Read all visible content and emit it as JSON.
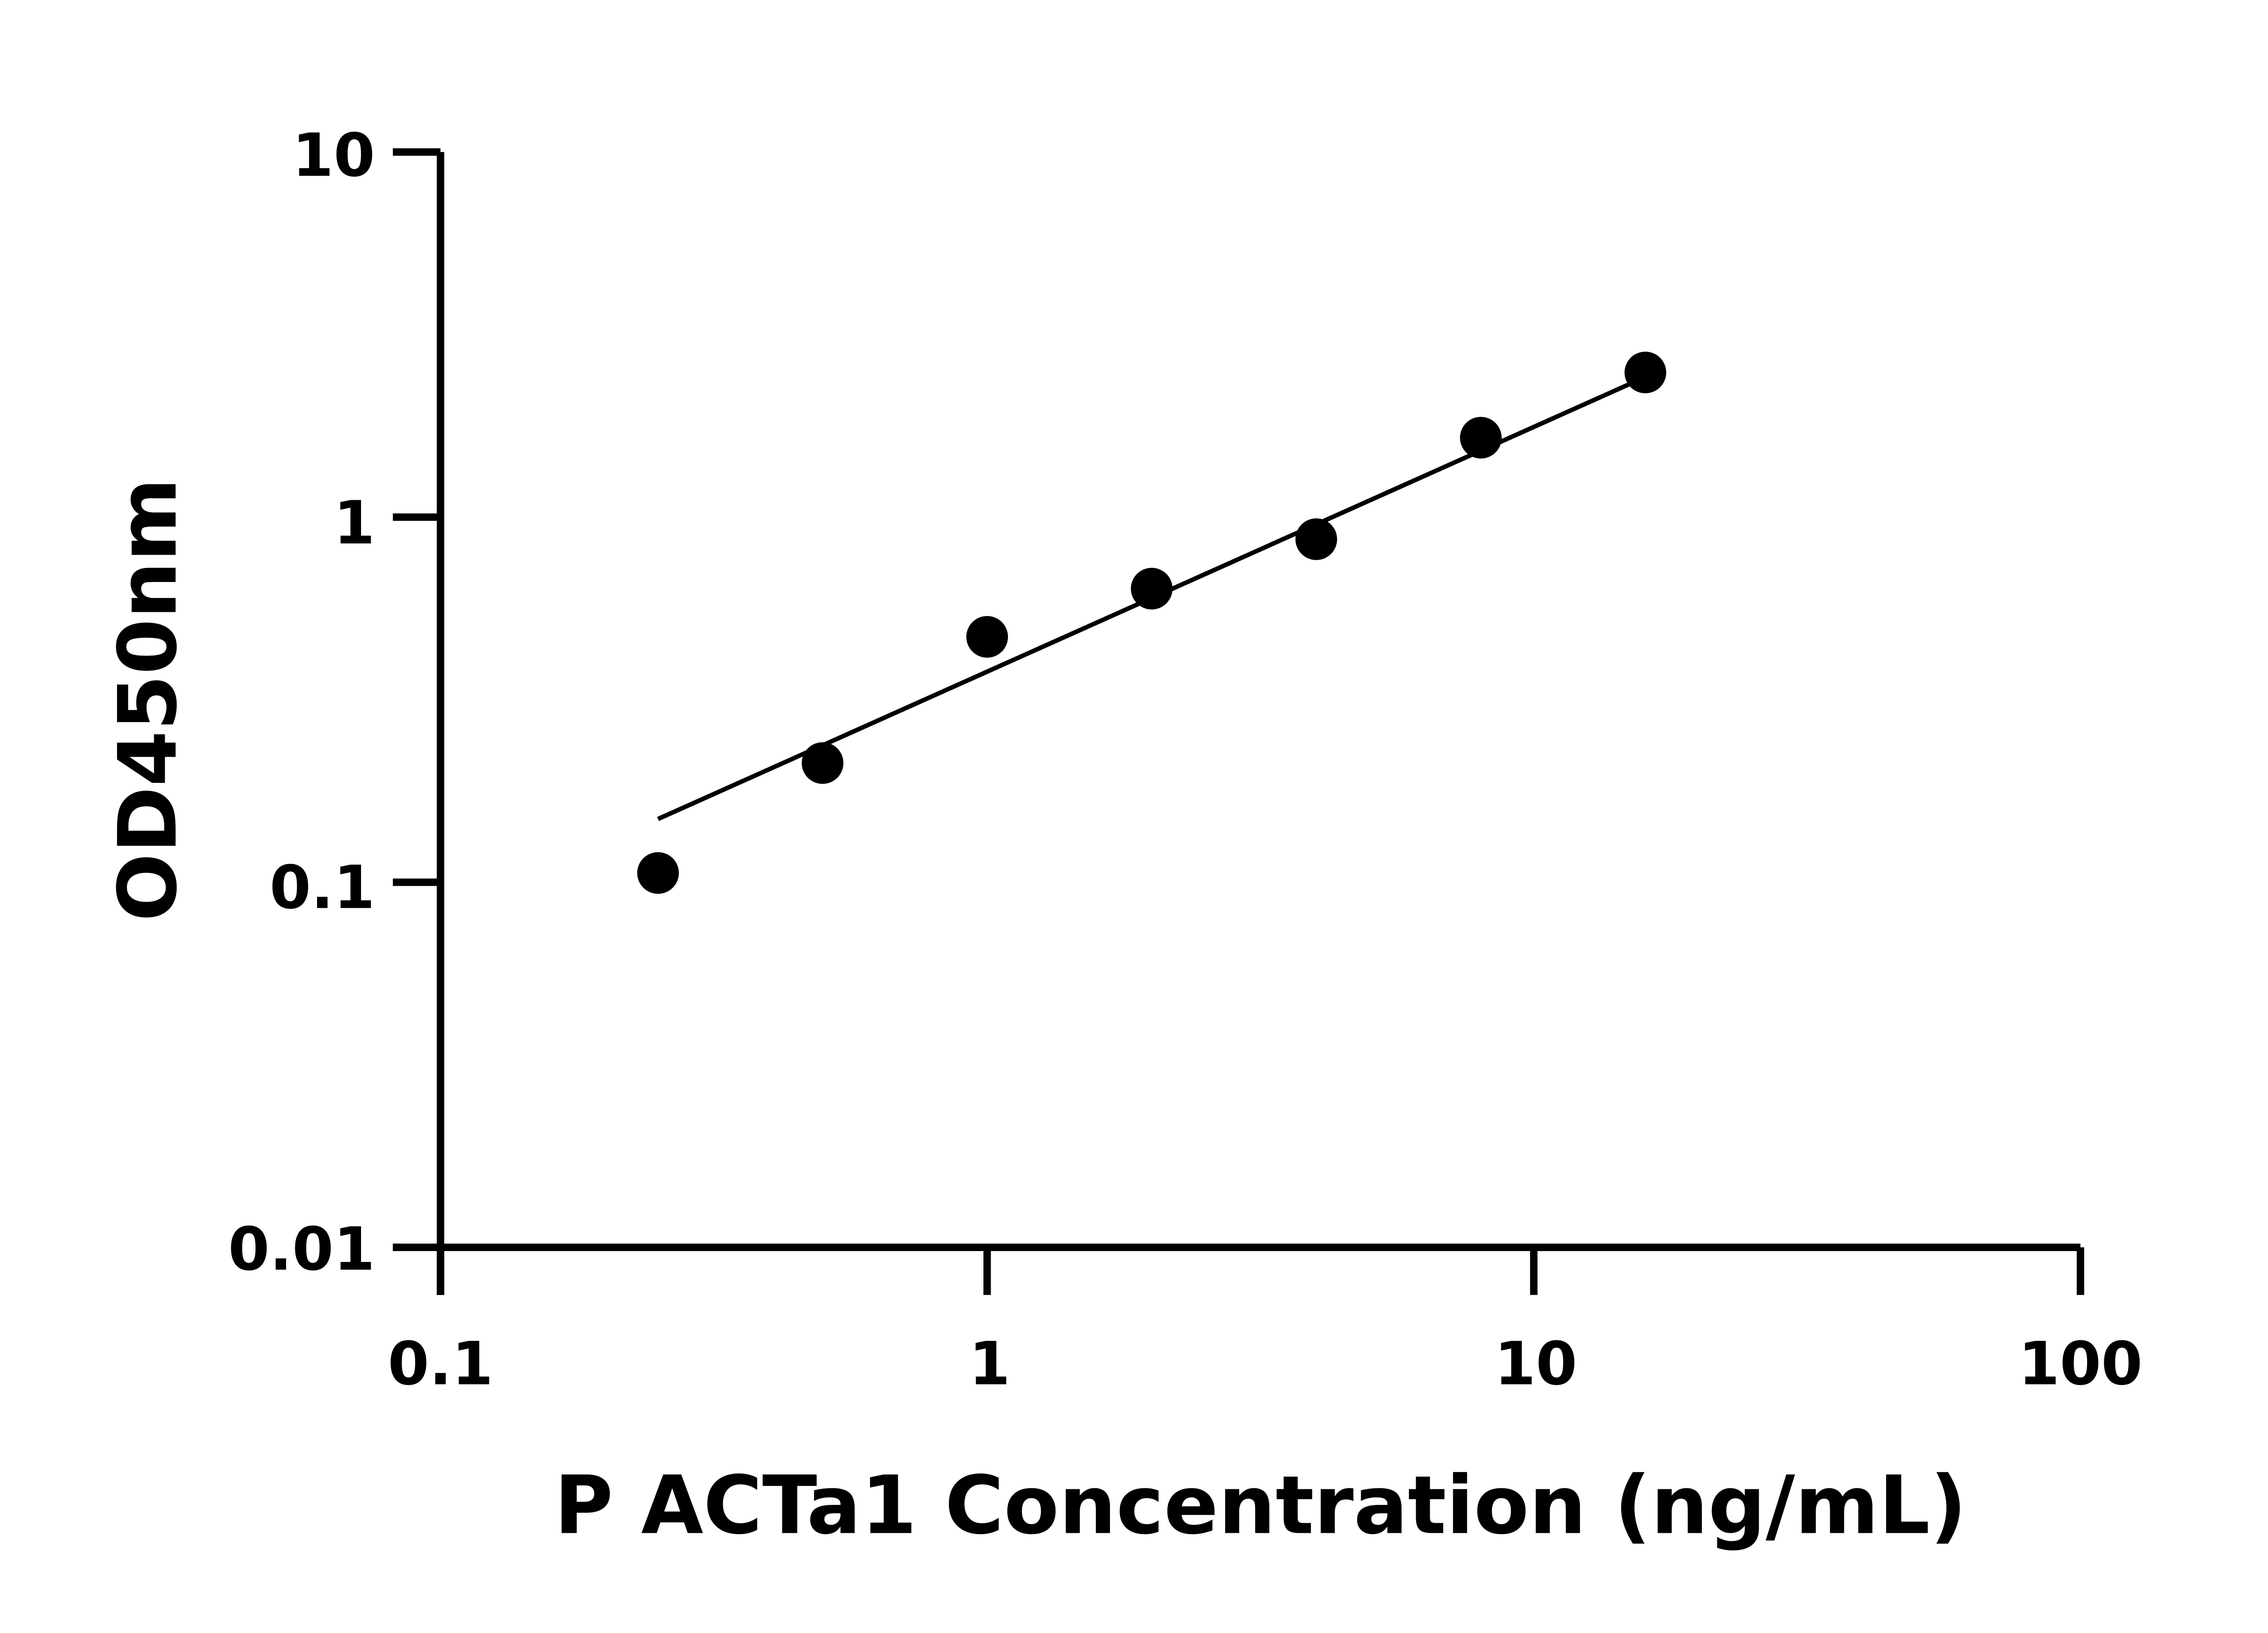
{
  "chart_data": {
    "type": "scatter",
    "xlabel": "P ACTa1 Concentration (ng/mL)",
    "ylabel": "OD450nm",
    "x_scale": "log",
    "y_scale": "log",
    "xlim": [
      0.1,
      100
    ],
    "ylim": [
      0.01,
      10
    ],
    "x_ticks": [
      "0.1",
      "1",
      "10",
      "100"
    ],
    "y_ticks": [
      "0.01",
      "0.1",
      "1",
      "10"
    ],
    "grid": false,
    "points": {
      "x": [
        0.25,
        0.5,
        1,
        2,
        4,
        8,
        16
      ],
      "y": [
        0.106,
        0.212,
        0.47,
        0.637,
        0.87,
        1.65,
        2.49
      ]
    },
    "fit_line": {
      "x": [
        0.25,
        16
      ],
      "y": [
        0.149,
        2.42
      ]
    },
    "colors": {
      "points": "#000000",
      "line": "#000000",
      "axes": "#000000"
    }
  }
}
